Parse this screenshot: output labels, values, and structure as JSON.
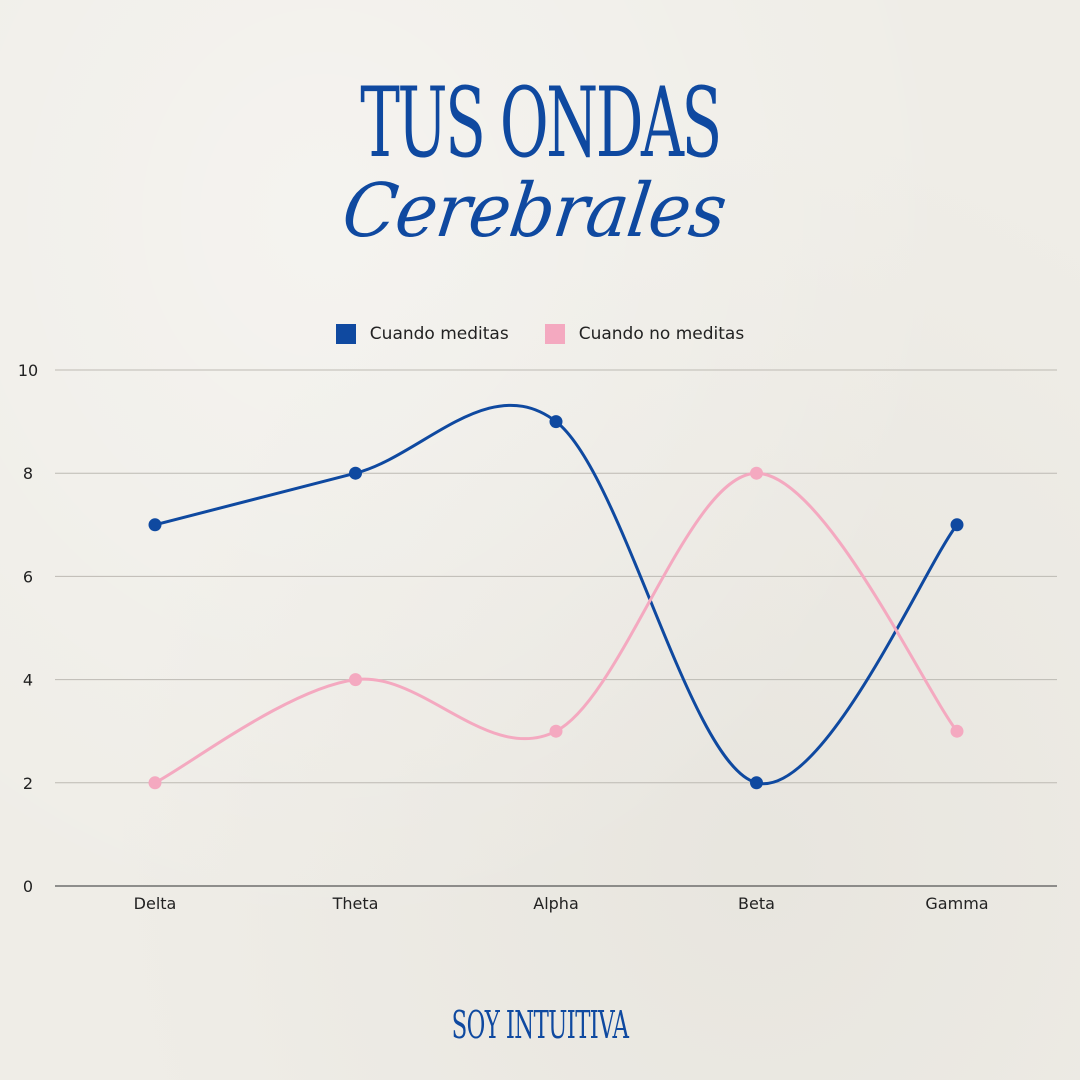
{
  "header": {
    "title_line1": "TUS ONDAS",
    "title_line2": "Cerebrales"
  },
  "footer": {
    "brand": "SOY INTUITIVA"
  },
  "colors": {
    "accent": "#0f49a0",
    "series1": "#0f49a0",
    "series2": "#f4a9c0",
    "grid": "#bdbab3"
  },
  "chart_data": {
    "type": "line",
    "categories": [
      "Delta",
      "Theta",
      "Alpha",
      "Beta",
      "Gamma"
    ],
    "series": [
      {
        "name": "Cuando meditas",
        "values": [
          7,
          8,
          9,
          2,
          7
        ]
      },
      {
        "name": "Cuando no meditas",
        "values": [
          2,
          4,
          3,
          8,
          3
        ]
      }
    ],
    "title": "",
    "xlabel": "",
    "ylabel": "",
    "ylim": [
      0,
      10
    ],
    "yticks": [
      "0",
      "2",
      "4",
      "6",
      "8",
      "10"
    ],
    "grid": true,
    "legend": "top-center",
    "smooth": true
  }
}
